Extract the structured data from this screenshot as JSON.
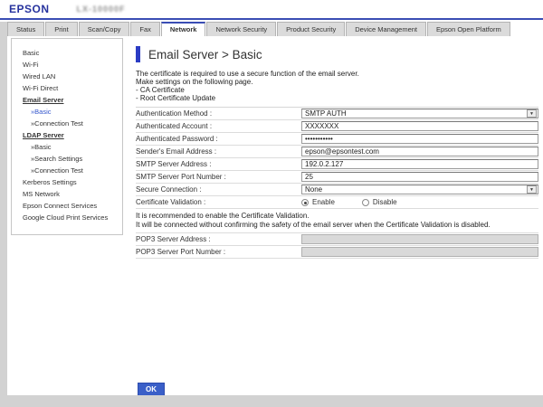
{
  "header": {
    "brand": "EPSON",
    "model": "LX-10000F"
  },
  "tabs": [
    {
      "label": "Status"
    },
    {
      "label": "Print"
    },
    {
      "label": "Scan/Copy"
    },
    {
      "label": "Fax"
    },
    {
      "label": "Network"
    },
    {
      "label": "Network Security"
    },
    {
      "label": "Product Security"
    },
    {
      "label": "Device Management"
    },
    {
      "label": "Epson Open Platform"
    }
  ],
  "sidebar": {
    "items": [
      {
        "label": "Basic"
      },
      {
        "label": "Wi-Fi"
      },
      {
        "label": "Wired LAN"
      },
      {
        "label": "Wi-Fi Direct"
      },
      {
        "label": "Email Server"
      },
      {
        "label": "»Basic"
      },
      {
        "label": "»Connection Test"
      },
      {
        "label": "LDAP Server"
      },
      {
        "label": "»Basic"
      },
      {
        "label": "»Search Settings"
      },
      {
        "label": "»Connection Test"
      },
      {
        "label": "Kerberos Settings"
      },
      {
        "label": "MS Network"
      },
      {
        "label": "Epson Connect Services"
      },
      {
        "label": "Google Cloud Print Services"
      }
    ]
  },
  "page": {
    "title": "Email Server > Basic",
    "intro_lines": [
      "The certificate is required to use a secure function of the email server.",
      "Make settings on the following page.",
      "- CA Certificate",
      "- Root Certificate Update"
    ]
  },
  "form": {
    "auth_method": {
      "label": "Authentication Method :",
      "value": "SMTP AUTH"
    },
    "auth_account": {
      "label": "Authenticated Account :",
      "value": "XXXXXXX"
    },
    "auth_password": {
      "label": "Authenticated Password :",
      "value": "•••••••••••"
    },
    "sender_email": {
      "label": "Sender's Email Address :",
      "value": "epson@epsontest.com"
    },
    "smtp_address": {
      "label": "SMTP Server Address :",
      "value": "192.0.2.127"
    },
    "smtp_port": {
      "label": "SMTP Server Port Number :",
      "value": "25"
    },
    "secure_connection": {
      "label": "Secure Connection :",
      "value": "None"
    },
    "cert_validation": {
      "label": "Certificate Validation :",
      "options": [
        "Enable",
        "Disable"
      ],
      "selected": "Enable"
    },
    "note_lines": [
      "It is recommended to enable the Certificate Validation.",
      "It will be connected without confirming the safety of the email server when the Certificate Validation is disabled."
    ],
    "pop3_address": {
      "label": "POP3 Server Address :",
      "value": ""
    },
    "pop3_port": {
      "label": "POP3 Server Port Number :",
      "value": ""
    },
    "ok_label": "OK",
    "dropdown_icon": "▼"
  },
  "colors": {
    "accent_blue": "#2b3cc4",
    "button_blue": "#3a5fc8",
    "tab_gray": "#dbdbdb"
  }
}
